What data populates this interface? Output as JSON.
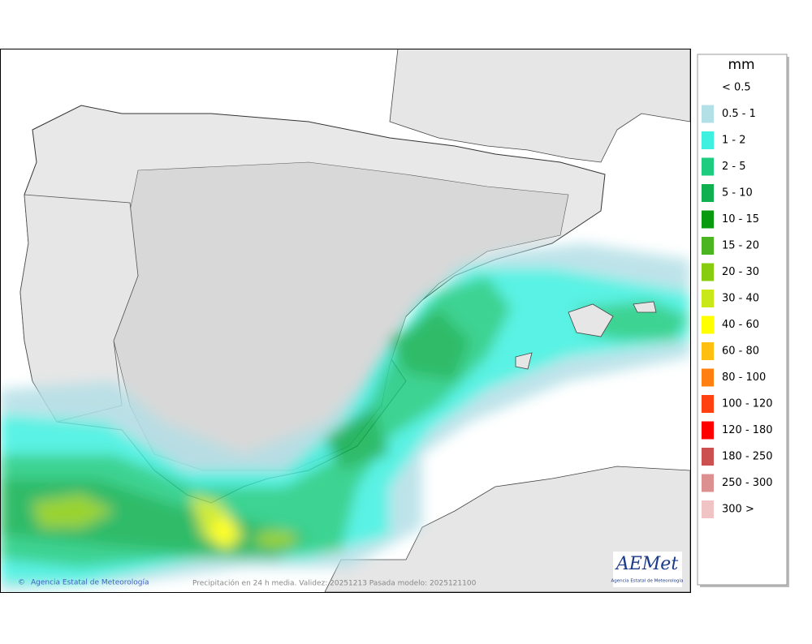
{
  "legend": {
    "title": "mm",
    "items": [
      {
        "label": "< 0.5",
        "color": null
      },
      {
        "label": "0.5 - 1",
        "color": "#b3dfe6"
      },
      {
        "label": "1 - 2",
        "color": "#3ef0e0"
      },
      {
        "label": "2 - 5",
        "color": "#1ecc80"
      },
      {
        "label": "5 - 10",
        "color": "#10b050"
      },
      {
        "label": "10 - 15",
        "color": "#0a9a10"
      },
      {
        "label": "15 - 20",
        "color": "#4ab520"
      },
      {
        "label": "20 - 30",
        "color": "#88cc10"
      },
      {
        "label": "30 - 40",
        "color": "#c8e818"
      },
      {
        "label": "40 - 60",
        "color": "#ffff00"
      },
      {
        "label": "60 - 80",
        "color": "#ffbf10"
      },
      {
        "label": "80 - 100",
        "color": "#ff8010"
      },
      {
        "label": "100 - 120",
        "color": "#ff4010"
      },
      {
        "label": "120 - 180",
        "color": "#ff0000"
      },
      {
        "label": "180 - 250",
        "color": "#cc5050"
      },
      {
        "label": "250 - 300",
        "color": "#dc9090"
      },
      {
        "label": "300 >",
        "color": "#f0c4c4"
      }
    ]
  },
  "footer": {
    "credit": "Agencia Estatal de Meteorología",
    "caption": "Precipitación en 24 h media. Validez: 20251213 Pasada modelo: 2025121100"
  },
  "logo": {
    "name": "AEMet",
    "subtitle": "Agencia Estatal de Meteorología"
  }
}
